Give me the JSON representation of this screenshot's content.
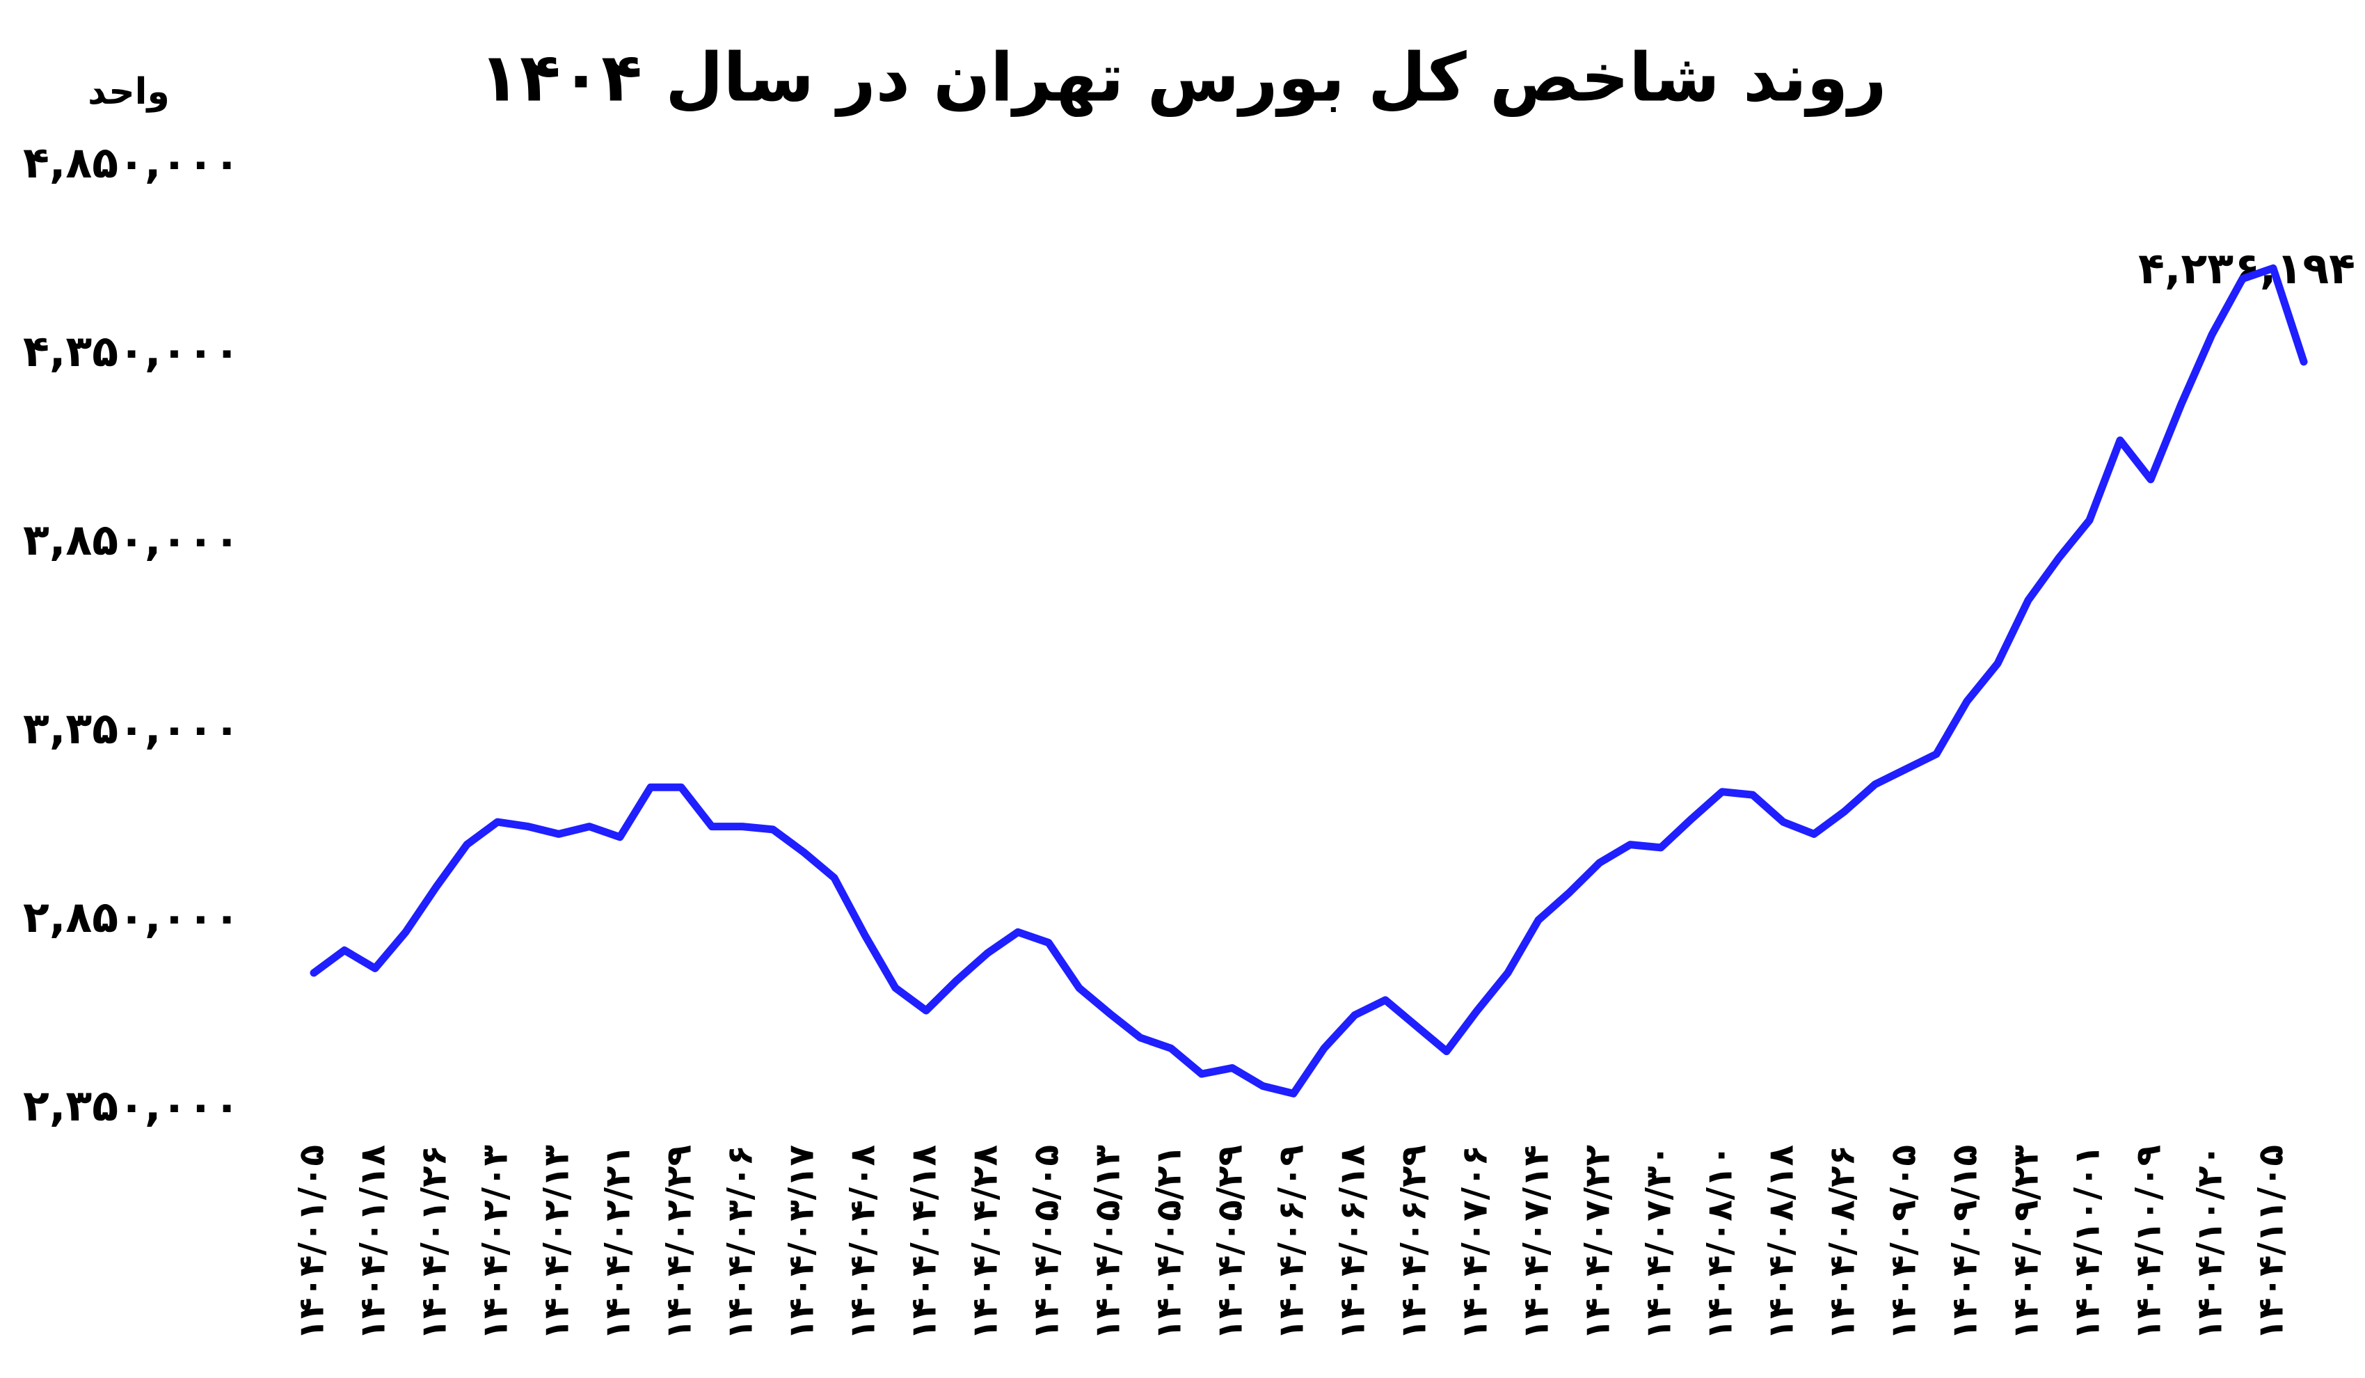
{
  "chart_data": {
    "type": "line",
    "title": "روند شاخص کل بورس تهران در سال ۱۴۰۴",
    "y_label": "واحد",
    "annotation": "۴,۲۳۶,۱۹۴",
    "color": "#1f1fff",
    "grid": false,
    "categories": [
      "۱۴۰۴/۰۱/۰۵",
      null,
      "۱۴۰۴/۰۱/۱۸",
      null,
      "۱۴۰۴/۰۱/۲۶",
      null,
      "۱۴۰۴/۰۲/۰۳",
      null,
      "۱۴۰۴/۰۲/۱۳",
      null,
      "۱۴۰۴/۰۲/۲۱",
      null,
      "۱۴۰۴/۰۲/۲۹",
      null,
      "۱۴۰۴/۰۳/۰۶",
      null,
      "۱۴۰۴/۰۳/۱۷",
      null,
      "۱۴۰۴/۰۴/۰۸",
      null,
      "۱۴۰۴/۰۴/۱۸",
      null,
      "۱۴۰۴/۰۴/۲۸",
      null,
      "۱۴۰۴/۰۵/۰۵",
      null,
      "۱۴۰۴/۰۵/۱۳",
      null,
      "۱۴۰۴/۰۵/۲۱",
      null,
      "۱۴۰۴/۰۵/۲۹",
      null,
      "۱۴۰۴/۰۶/۰۹",
      null,
      "۱۴۰۴/۰۶/۱۸",
      null,
      "۱۴۰۴/۰۶/۲۹",
      null,
      "۱۴۰۴/۰۷/۰۶",
      null,
      "۱۴۰۴/۰۷/۱۴",
      null,
      "۱۴۰۴/۰۷/۲۲",
      null,
      "۱۴۰۴/۰۷/۳۰",
      null,
      "۱۴۰۴/۰۸/۱۰",
      null,
      "۱۴۰۴/۰۸/۱۸",
      null,
      "۱۴۰۴/۰۸/۲۶",
      null,
      "۱۴۰۴/۰۹/۰۵",
      null,
      "۱۴۰۴/۰۹/۱۵",
      null,
      "۱۴۰۴/۰۹/۲۳",
      null,
      "۱۴۰۴/۱۰/۰۱",
      null,
      "۱۴۰۴/۱۰/۰۹",
      null,
      "۱۴۰۴/۱۰/۲۰",
      null,
      "۱۴۰۴/۱۱/۰۵",
      null
    ],
    "values": [
      2710000,
      2770000,
      2722000,
      2818000,
      2938000,
      3050000,
      3110000,
      3098000,
      3078000,
      3098000,
      3070000,
      3202000,
      3202000,
      3098000,
      3098000,
      3090000,
      3030000,
      2962000,
      2810000,
      2670000,
      2610000,
      2690000,
      2762000,
      2818000,
      2790000,
      2670000,
      2602000,
      2538000,
      2510000,
      2442000,
      2458000,
      2410000,
      2390000,
      2510000,
      2598000,
      2638000,
      2570000,
      2502000,
      2610000,
      2710000,
      2850000,
      2922000,
      3002000,
      3050000,
      3042000,
      3118000,
      3190000,
      3182000,
      3110000,
      3078000,
      3138000,
      3210000,
      3250000,
      3290000,
      3430000,
      3530000,
      3698000,
      3810000,
      3910000,
      4122000,
      4018000,
      4218000,
      4402000,
      4550000,
      4578000,
      4330000
    ],
    "ylim": [
      2350000,
      4850000
    ],
    "yticks": [
      {
        "value": 2350000,
        "label": "۲,۳۵۰,۰۰۰"
      },
      {
        "value": 2850000,
        "label": "۲,۸۵۰,۰۰۰"
      },
      {
        "value": 3350000,
        "label": "۳,۳۵۰,۰۰۰"
      },
      {
        "value": 3850000,
        "label": "۳,۸۵۰,۰۰۰"
      },
      {
        "value": 4350000,
        "label": "۴,۳۵۰,۰۰۰"
      },
      {
        "value": 4850000,
        "label": "۴,۸۵۰,۰۰۰"
      }
    ]
  }
}
